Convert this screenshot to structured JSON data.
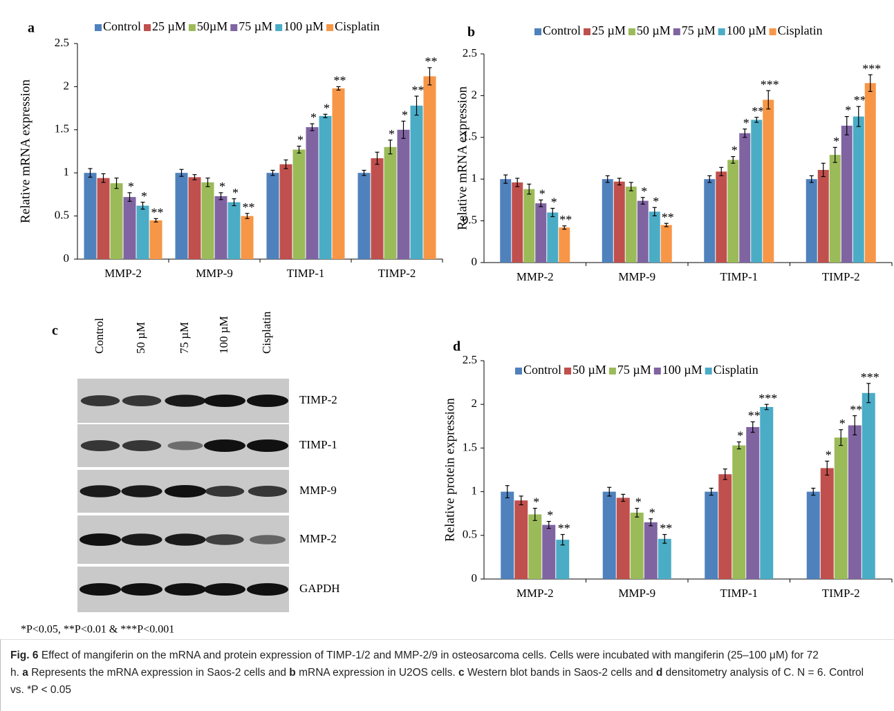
{
  "chart_data": [
    {
      "type": "bar",
      "panel": "a",
      "y_label": "Relative  mRNA expression",
      "categories": [
        "MMP-2",
        "MMP-9",
        "TIMP-1",
        "TIMP-2"
      ],
      "ylim": [
        0,
        2.5
      ],
      "yticks": [
        0,
        0.5,
        1,
        1.5,
        2,
        2.5
      ],
      "series": [
        {
          "name": "Control",
          "color": "#4f81bd",
          "values": [
            1.0,
            1.0,
            1.0,
            1.0
          ],
          "errors": [
            0.05,
            0.04,
            0.03,
            0.03
          ],
          "stars": [
            null,
            null,
            null,
            null
          ]
        },
        {
          "name": "25 µM",
          "color": "#c0504d",
          "values": [
            0.94,
            0.95,
            1.1,
            1.17
          ],
          "errors": [
            0.05,
            0.03,
            0.05,
            0.07
          ],
          "stars": [
            null,
            null,
            null,
            null
          ]
        },
        {
          "name": "50µM",
          "color": "#9bbb59",
          "values": [
            0.88,
            0.89,
            1.27,
            1.3
          ],
          "errors": [
            0.06,
            0.05,
            0.04,
            0.08
          ],
          "stars": [
            null,
            null,
            "*",
            "*"
          ]
        },
        {
          "name": "75 µM",
          "color": "#8064a2",
          "values": [
            0.72,
            0.73,
            1.53,
            1.5
          ],
          "errors": [
            0.05,
            0.04,
            0.04,
            0.1
          ],
          "stars": [
            "*",
            "*",
            "*",
            "*"
          ]
        },
        {
          "name": "100 µM",
          "color": "#4bacc6",
          "values": [
            0.62,
            0.66,
            1.66,
            1.78
          ],
          "errors": [
            0.04,
            0.04,
            0.02,
            0.11
          ],
          "stars": [
            "*",
            "*",
            "*",
            "**"
          ]
        },
        {
          "name": "Cisplatin",
          "color": "#f79646",
          "values": [
            0.45,
            0.5,
            1.98,
            2.12
          ],
          "errors": [
            0.02,
            0.03,
            0.02,
            0.1
          ],
          "stars": [
            "**",
            "**",
            "**",
            "**"
          ]
        }
      ]
    },
    {
      "type": "bar",
      "panel": "b",
      "y_label": "Relative  mRNA  expression",
      "categories": [
        "MMP-2",
        "MMP-9",
        "TIMP-1",
        "TIMP-2"
      ],
      "ylim": [
        0,
        2.5
      ],
      "yticks": [
        0,
        0.5,
        1,
        1.5,
        2,
        2.5
      ],
      "series": [
        {
          "name": "Control",
          "color": "#4f81bd",
          "values": [
            1.0,
            1.0,
            1.0,
            1.0
          ],
          "errors": [
            0.05,
            0.04,
            0.04,
            0.04
          ],
          "stars": [
            null,
            null,
            null,
            null
          ]
        },
        {
          "name": "25 µM",
          "color": "#c0504d",
          "values": [
            0.96,
            0.97,
            1.09,
            1.11
          ],
          "errors": [
            0.05,
            0.04,
            0.05,
            0.08
          ],
          "stars": [
            null,
            null,
            null,
            null
          ]
        },
        {
          "name": "50 µM",
          "color": "#9bbb59",
          "values": [
            0.88,
            0.91,
            1.23,
            1.29
          ],
          "errors": [
            0.06,
            0.05,
            0.04,
            0.09
          ],
          "stars": [
            null,
            null,
            "*",
            "*"
          ]
        },
        {
          "name": "75 µM",
          "color": "#8064a2",
          "values": [
            0.71,
            0.74,
            1.55,
            1.64
          ],
          "errors": [
            0.04,
            0.04,
            0.05,
            0.11
          ],
          "stars": [
            "*",
            "*",
            "*",
            "*"
          ]
        },
        {
          "name": "100 µM",
          "color": "#4bacc6",
          "values": [
            0.6,
            0.61,
            1.71,
            1.75
          ],
          "errors": [
            0.05,
            0.05,
            0.03,
            0.12
          ],
          "stars": [
            "*",
            "*",
            "**",
            "**"
          ]
        },
        {
          "name": "Cisplatin",
          "color": "#f79646",
          "values": [
            0.42,
            0.45,
            1.95,
            2.15
          ],
          "errors": [
            0.02,
            0.02,
            0.11,
            0.1
          ],
          "stars": [
            "**",
            "**",
            "***",
            "***"
          ]
        }
      ]
    },
    {
      "type": "bar",
      "panel": "d",
      "y_label": "Relative  protein  expression",
      "categories": [
        "MMP-2",
        "MMP-9",
        "TIMP-1",
        "TIMP-2"
      ],
      "ylim": [
        0,
        2.5
      ],
      "yticks": [
        0,
        0.5,
        1,
        1.5,
        2,
        2.5
      ],
      "series": [
        {
          "name": "Control",
          "color": "#4f81bd",
          "values": [
            1.0,
            1.0,
            1.0,
            1.0
          ],
          "errors": [
            0.07,
            0.05,
            0.04,
            0.04
          ],
          "stars": [
            null,
            null,
            null,
            null
          ]
        },
        {
          "name": "50 µM",
          "color": "#c0504d",
          "values": [
            0.9,
            0.93,
            1.2,
            1.27
          ],
          "errors": [
            0.05,
            0.04,
            0.06,
            0.08
          ],
          "stars": [
            null,
            null,
            null,
            "*"
          ]
        },
        {
          "name": "75 µM",
          "color": "#9bbb59",
          "values": [
            0.74,
            0.76,
            1.53,
            1.62
          ],
          "errors": [
            0.07,
            0.05,
            0.04,
            0.09
          ],
          "stars": [
            "*",
            "*",
            "*",
            "*"
          ]
        },
        {
          "name": "100 µM",
          "color": "#8064a2",
          "values": [
            0.62,
            0.65,
            1.74,
            1.76
          ],
          "errors": [
            0.04,
            0.04,
            0.06,
            0.11
          ],
          "stars": [
            "*",
            "*",
            "**",
            "**"
          ]
        },
        {
          "name": "Cisplatin",
          "color": "#4bacc6",
          "values": [
            0.45,
            0.46,
            1.97,
            2.13
          ],
          "errors": [
            0.06,
            0.05,
            0.03,
            0.11
          ],
          "stars": [
            "**",
            "**",
            "***",
            "***"
          ]
        }
      ]
    }
  ],
  "blot": {
    "panel": "c",
    "columns": [
      "Control",
      "50 µM",
      "75 µM",
      "100 µM",
      "Cisplatin"
    ],
    "rows": [
      "TIMP-2",
      "TIMP-1",
      "MMP-9",
      "MMP-2",
      "GAPDH"
    ]
  },
  "footnote": "*P<0.05, **P<0.01 & ***P<0.001",
  "caption": {
    "label": "Fig. 6",
    "parts": [
      "Effect of mangiferin on the mRNA and protein expression of TIMP-1/2 and MMP-2/9 in osteosarcoma cells. Cells were incubated with mangiferin (25–100 μM) for 72 h.",
      "a",
      "Represents the mRNA expression in Saos-2 cells and",
      "b",
      "mRNA expression in U2OS cells.",
      "c",
      "Western blot bands in Saos-2 cells and",
      "d",
      "densitometry analysis of C. N = 6. Control vs. *P < 0.05"
    ]
  }
}
